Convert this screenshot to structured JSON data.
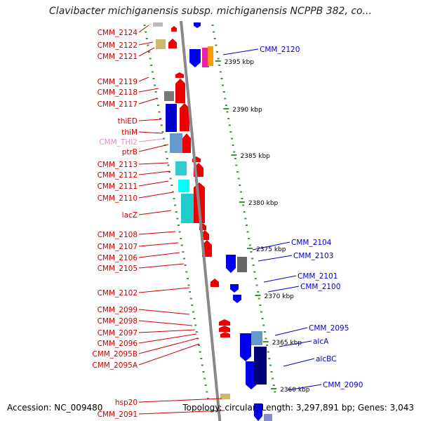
{
  "title": "Clavibacter michiganensis subsp. michiganensis NCPPB 382, co...",
  "footer": {
    "accession": "Accession: NC_009480",
    "topology": "Topology: circular; Length: 3,297,891 bp; Genes: 3,043"
  },
  "colors": {
    "left_label": "#cc0000",
    "right_label": "#0000cc",
    "pseudo_label": "#e88ac8",
    "forward_gene": "#ee0000",
    "reverse_gene": "#0000ee",
    "tick": "#339933",
    "backbone": "#888888"
  },
  "scale_labels": [
    "2395 kbp",
    "2390 kbp",
    "2385 kbp",
    "2380 kbp",
    "2375 kbp",
    "2370 kbp",
    "2365 kbp",
    "2360 kbp"
  ],
  "left_genes": [
    "CMM_2124",
    "CMM_2122",
    "CMM_2121",
    "CMM_2119",
    "CMM_2118",
    "CMM_2117",
    "thiED",
    "thiM",
    "CMM_THI2",
    "ptrB",
    "CMM_2113",
    "CMM_2112",
    "CMM_2111",
    "CMM_2110",
    "lacZ",
    "CMM_2108",
    "CMM_2107",
    "CMM_2106",
    "CMM_2105",
    "CMM_2102",
    "CMM_2099",
    "CMM_2098",
    "CMM_2097",
    "CMM_2096",
    "CMM_2095B",
    "CMM_2095A",
    "hsp20",
    "CMM_2091"
  ],
  "right_genes": [
    "CMM_2120",
    "CMM_2104",
    "CMM_2103",
    "CMM_2101",
    "CMM_2100",
    "CMM_2095",
    "alcA",
    "alcBC",
    "CMM_2090"
  ]
}
